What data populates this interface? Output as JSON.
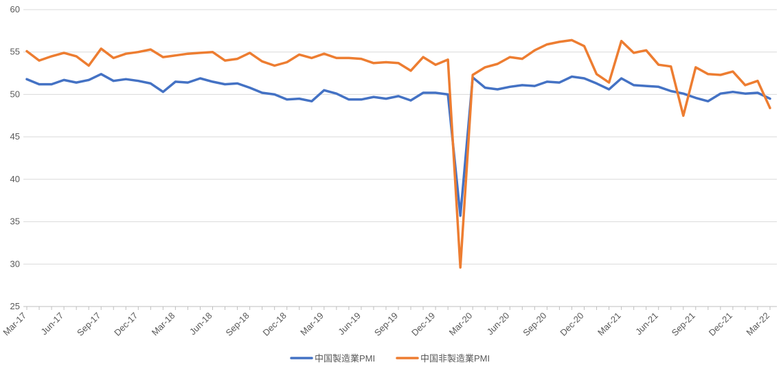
{
  "chart_data": {
    "type": "line",
    "title": "",
    "xlabel": "",
    "ylabel": "",
    "ylim": [
      25,
      60
    ],
    "yticks": [
      25,
      30,
      35,
      40,
      45,
      50,
      55,
      60
    ],
    "grid": "horizontal",
    "legend_position": "bottom",
    "x": [
      "Mar-17",
      "Apr-17",
      "May-17",
      "Jun-17",
      "Jul-17",
      "Aug-17",
      "Sep-17",
      "Oct-17",
      "Nov-17",
      "Dec-17",
      "Jan-18",
      "Feb-18",
      "Mar-18",
      "Apr-18",
      "May-18",
      "Jun-18",
      "Jul-18",
      "Aug-18",
      "Sep-18",
      "Oct-18",
      "Nov-18",
      "Dec-18",
      "Jan-19",
      "Feb-19",
      "Mar-19",
      "Apr-19",
      "May-19",
      "Jun-19",
      "Jul-19",
      "Aug-19",
      "Sep-19",
      "Oct-19",
      "Nov-19",
      "Dec-19",
      "Jan-20",
      "Feb-20",
      "Mar-20",
      "Apr-20",
      "May-20",
      "Jun-20",
      "Jul-20",
      "Aug-20",
      "Sep-20",
      "Oct-20",
      "Nov-20",
      "Dec-20",
      "Jan-21",
      "Feb-21",
      "Mar-21",
      "Apr-21",
      "May-21",
      "Jun-21",
      "Jul-21",
      "Aug-21",
      "Sep-21",
      "Oct-21",
      "Nov-21",
      "Dec-21",
      "Jan-22",
      "Feb-22",
      "Mar-22"
    ],
    "x_tick_labels": [
      "Mar-17",
      "Jun-17",
      "Sep-17",
      "Dec-17",
      "Mar-18",
      "Jun-18",
      "Sep-18",
      "Dec-18",
      "Mar-19",
      "Jun-19",
      "Sep-19",
      "Dec-19",
      "Mar-20",
      "Jun-20",
      "Sep-20",
      "Dec-20",
      "Mar-21",
      "Jun-21",
      "Sep-21",
      "Dec-21",
      "Mar-22"
    ],
    "series": [
      {
        "name": "中国製造業PMI",
        "color": "#4472C4",
        "values": [
          51.8,
          51.2,
          51.2,
          51.7,
          51.4,
          51.7,
          52.4,
          51.6,
          51.8,
          51.6,
          51.3,
          50.3,
          51.5,
          51.4,
          51.9,
          51.5,
          51.2,
          51.3,
          50.8,
          50.2,
          50.0,
          49.4,
          49.5,
          49.2,
          50.5,
          50.1,
          49.4,
          49.4,
          49.7,
          49.5,
          49.8,
          49.3,
          50.2,
          50.2,
          50.0,
          35.7,
          52.0,
          50.8,
          50.6,
          50.9,
          51.1,
          51.0,
          51.5,
          51.4,
          52.1,
          51.9,
          51.3,
          50.6,
          51.9,
          51.1,
          51.0,
          50.9,
          50.4,
          50.1,
          49.6,
          49.2,
          50.1,
          50.3,
          50.1,
          50.2,
          49.5
        ]
      },
      {
        "name": "中国非製造業PMI",
        "color": "#ED7D31",
        "values": [
          55.1,
          54.0,
          54.5,
          54.9,
          54.5,
          53.4,
          55.4,
          54.3,
          54.8,
          55.0,
          55.3,
          54.4,
          54.6,
          54.8,
          54.9,
          55.0,
          54.0,
          54.2,
          54.9,
          53.9,
          53.4,
          53.8,
          54.7,
          54.3,
          54.8,
          54.3,
          54.3,
          54.2,
          53.7,
          53.8,
          53.7,
          52.8,
          54.4,
          53.5,
          54.1,
          29.6,
          52.3,
          53.2,
          53.6,
          54.4,
          54.2,
          55.2,
          55.9,
          56.2,
          56.4,
          55.7,
          52.4,
          51.4,
          56.3,
          54.9,
          55.2,
          53.5,
          53.3,
          47.5,
          53.2,
          52.4,
          52.3,
          52.7,
          51.1,
          51.6,
          48.4
        ]
      }
    ]
  }
}
